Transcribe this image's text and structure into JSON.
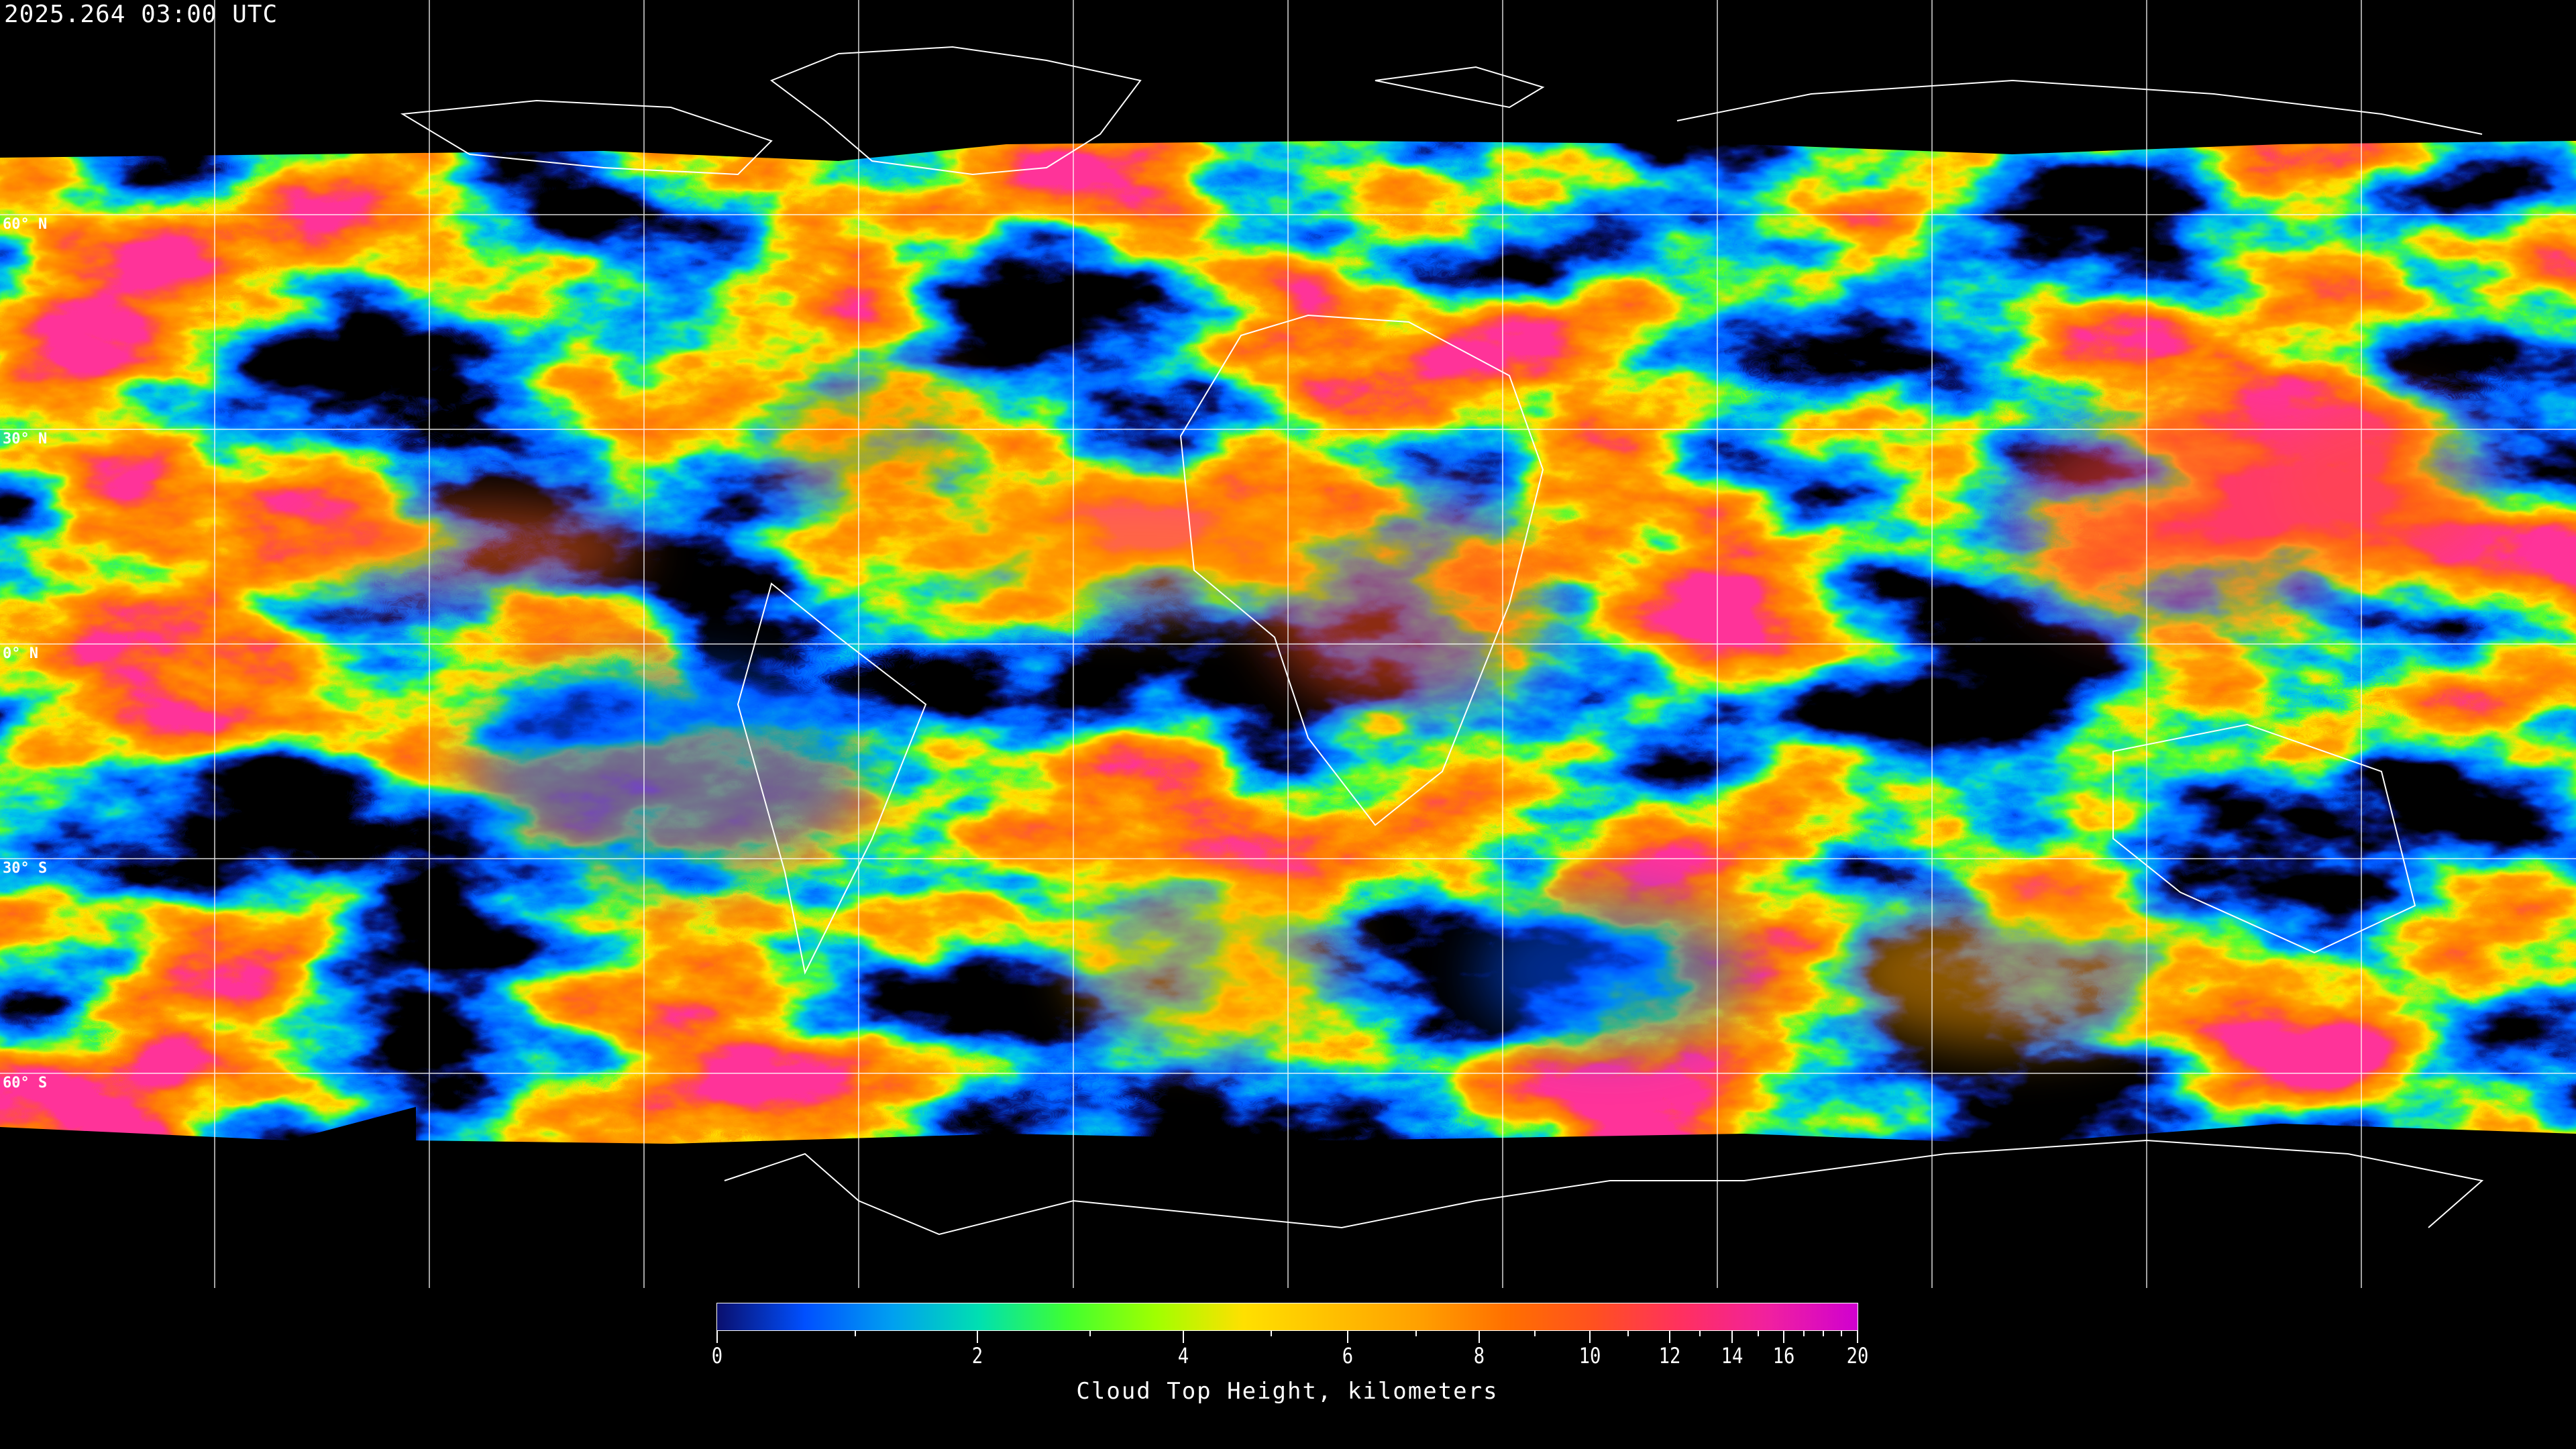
{
  "title": "2025.264 03:00 UTC",
  "map": {
    "projection": "equirectangular",
    "gridlines_deg": 30,
    "lat_labels": [
      "60° N",
      "30° N",
      "0° N",
      "30° S",
      "60° S"
    ],
    "gridline_color": "#ffffff",
    "coastline_color": "#ffffff",
    "no_data_color": "#000000"
  },
  "colorbar": {
    "label": "Cloud Top Height, kilometers",
    "ticks": [
      "0",
      "2",
      "4",
      "6",
      "8",
      "10",
      "12",
      "14",
      "16",
      "20"
    ],
    "minor_ticks": [
      1,
      3,
      5,
      7,
      9,
      11,
      13,
      15,
      17,
      18,
      19
    ],
    "range": [
      0,
      20
    ],
    "colors": [
      "#0a0f6e",
      "#0050ff",
      "#00a0f0",
      "#00e0b0",
      "#40ff30",
      "#a0ff00",
      "#ffe000",
      "#ffc000",
      "#ffa000",
      "#ff7000",
      "#ff5020",
      "#ff3060",
      "#f020a0",
      "#d000d0"
    ]
  }
}
